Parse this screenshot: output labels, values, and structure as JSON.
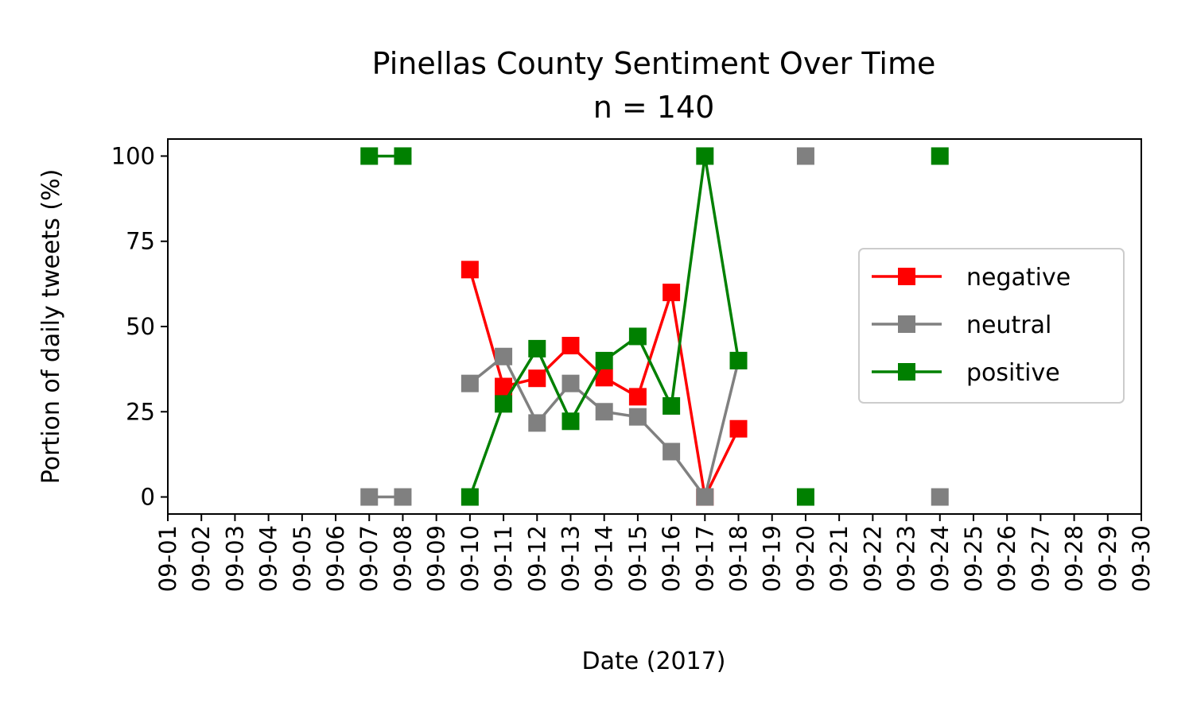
{
  "chart_data": {
    "type": "line",
    "title": "Pinellas County Sentiment Over Time",
    "subtitle": "n = 140",
    "xlabel": "Date (2017)",
    "ylabel": "Portion of daily tweets (%)",
    "x": [
      "09-01",
      "09-02",
      "09-03",
      "09-04",
      "09-05",
      "09-06",
      "09-07",
      "09-08",
      "09-09",
      "09-10",
      "09-11",
      "09-12",
      "09-13",
      "09-14",
      "09-15",
      "09-16",
      "09-17",
      "09-18",
      "09-19",
      "09-20",
      "09-21",
      "09-22",
      "09-23",
      "09-24",
      "09-25",
      "09-26",
      "09-27",
      "09-28",
      "09-29",
      "09-30"
    ],
    "yticks": [
      "0",
      "25",
      "50",
      "75",
      "100"
    ],
    "ylim": [
      -5,
      105
    ],
    "grid": false,
    "legend_position": "right",
    "series": [
      {
        "name": "negative",
        "color": "#ff0000",
        "marker": "square",
        "values": [
          null,
          null,
          null,
          null,
          null,
          null,
          null,
          null,
          null,
          66.7,
          32.4,
          34.8,
          44.4,
          35.0,
          29.4,
          60.0,
          0,
          20.0,
          null,
          null,
          null,
          null,
          null,
          null,
          null,
          null,
          null,
          null,
          null,
          null
        ]
      },
      {
        "name": "neutral",
        "color": "#808080",
        "marker": "square",
        "values": [
          null,
          null,
          null,
          null,
          null,
          null,
          0,
          0,
          null,
          33.3,
          41.2,
          21.7,
          33.3,
          25.0,
          23.5,
          13.3,
          0,
          40.0,
          null,
          100,
          null,
          null,
          null,
          0,
          null,
          null,
          null,
          null,
          null,
          null
        ]
      },
      {
        "name": "positive",
        "color": "#008000",
        "marker": "square",
        "values": [
          null,
          null,
          null,
          null,
          null,
          null,
          100,
          100,
          null,
          0,
          27.3,
          43.5,
          22.2,
          40.0,
          47.1,
          26.7,
          100,
          40.0,
          null,
          0,
          null,
          null,
          null,
          100,
          null,
          null,
          null,
          null,
          null,
          null
        ]
      }
    ]
  }
}
